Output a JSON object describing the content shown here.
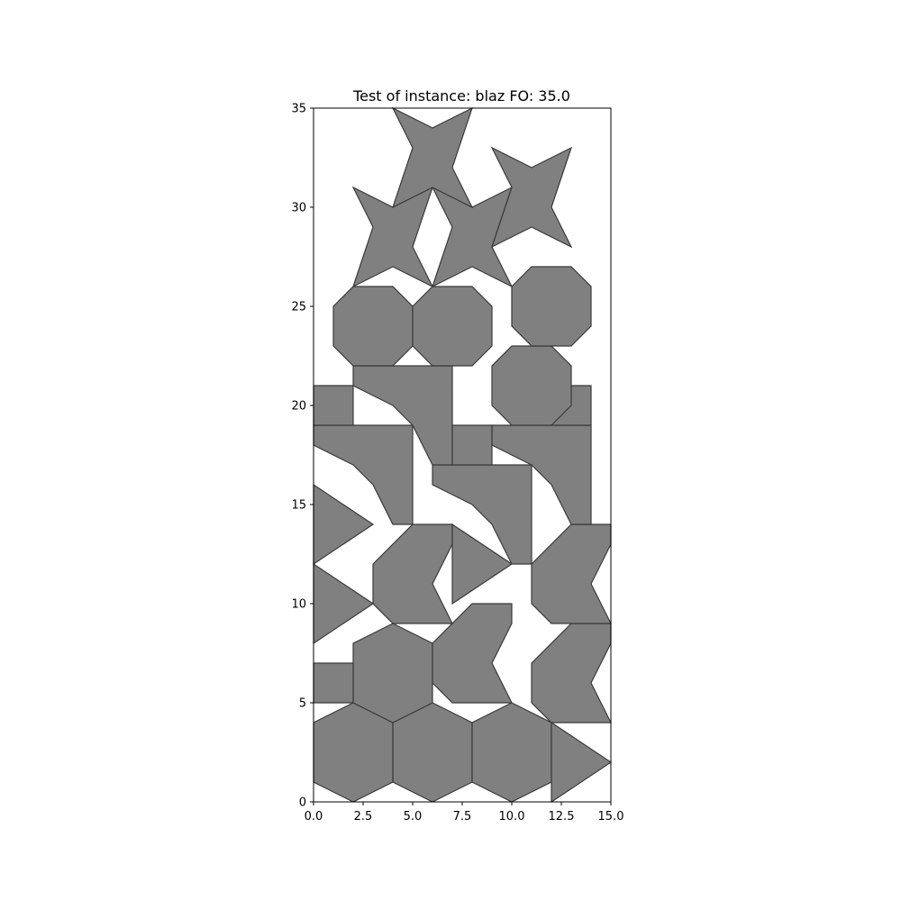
{
  "chart_data": {
    "type": "polygon-packing",
    "title": "Test of instance: blaz  FO: 35.0",
    "xlim": [
      0,
      15
    ],
    "ylim": [
      0,
      35
    ],
    "xticks": [
      0,
      2.5,
      5,
      7.5,
      10,
      12.5,
      15
    ],
    "xtick_labels": [
      "0.0",
      "2.5",
      "5.0",
      "7.5",
      "10.0",
      "12.5",
      "15.0"
    ],
    "yticks": [
      0,
      5,
      10,
      15,
      20,
      25,
      30,
      35
    ],
    "ytick_labels": [
      "0",
      "5",
      "10",
      "15",
      "20",
      "25",
      "30",
      "35"
    ],
    "grid": false,
    "colors": {
      "fill": "#808080",
      "edge": "#3a3a3a",
      "axes": "#000000"
    },
    "polygons": [
      {
        "shape": "hexagon",
        "points": [
          [
            0,
            1
          ],
          [
            0,
            4
          ],
          [
            2,
            5
          ],
          [
            4,
            4
          ],
          [
            4,
            1
          ],
          [
            2,
            0
          ]
        ]
      },
      {
        "shape": "hexagon",
        "points": [
          [
            4,
            1
          ],
          [
            4,
            4
          ],
          [
            6,
            5
          ],
          [
            8,
            4
          ],
          [
            8,
            1
          ],
          [
            6,
            0
          ]
        ]
      },
      {
        "shape": "hexagon",
        "points": [
          [
            8,
            1
          ],
          [
            8,
            4
          ],
          [
            10,
            5
          ],
          [
            12,
            4
          ],
          [
            12,
            1
          ],
          [
            10,
            0
          ]
        ]
      },
      {
        "shape": "triangle",
        "points": [
          [
            12,
            0
          ],
          [
            12,
            4
          ],
          [
            15,
            2
          ]
        ]
      },
      {
        "shape": "hexagon",
        "points": [
          [
            2,
            5
          ],
          [
            2,
            8
          ],
          [
            4,
            9
          ],
          [
            6,
            8
          ],
          [
            6,
            5
          ],
          [
            4,
            4
          ]
        ]
      },
      {
        "shape": "square",
        "points": [
          [
            0,
            5
          ],
          [
            2,
            5
          ],
          [
            2,
            7
          ],
          [
            0,
            7
          ]
        ]
      },
      {
        "shape": "chevron",
        "points": [
          [
            6,
            8
          ],
          [
            6,
            6
          ],
          [
            7,
            5
          ],
          [
            10,
            5
          ],
          [
            9,
            7
          ],
          [
            10,
            9
          ],
          [
            10,
            10
          ],
          [
            8,
            10
          ]
        ]
      },
      {
        "shape": "chevron",
        "points": [
          [
            11,
            7
          ],
          [
            11,
            5
          ],
          [
            12,
            4
          ],
          [
            15,
            4
          ],
          [
            14,
            6
          ],
          [
            15,
            8
          ],
          [
            15,
            9
          ],
          [
            13,
            9
          ]
        ]
      },
      {
        "shape": "triangle",
        "points": [
          [
            0,
            8
          ],
          [
            0,
            12
          ],
          [
            3,
            10
          ]
        ]
      },
      {
        "shape": "triangle",
        "points": [
          [
            0,
            12
          ],
          [
            0,
            16
          ],
          [
            3,
            14
          ]
        ]
      },
      {
        "shape": "chevron",
        "points": [
          [
            3,
            12
          ],
          [
            3,
            10
          ],
          [
            4,
            9
          ],
          [
            7,
            9
          ],
          [
            6,
            11
          ],
          [
            7,
            13
          ],
          [
            7,
            14
          ],
          [
            5,
            14
          ]
        ]
      },
      {
        "shape": "triangle",
        "points": [
          [
            7,
            10
          ],
          [
            7,
            14
          ],
          [
            10,
            12
          ]
        ]
      },
      {
        "shape": "chevron",
        "points": [
          [
            11,
            12
          ],
          [
            11,
            10
          ],
          [
            12,
            9
          ],
          [
            15,
            9
          ],
          [
            14,
            11
          ],
          [
            15,
            13
          ],
          [
            15,
            14
          ],
          [
            13,
            14
          ]
        ]
      },
      {
        "shape": "trapezoid",
        "points": [
          [
            0,
            19
          ],
          [
            5,
            19
          ],
          [
            5,
            14
          ],
          [
            4,
            14
          ],
          [
            3,
            16
          ],
          [
            2,
            17
          ],
          [
            0,
            18
          ]
        ]
      },
      {
        "shape": "trapezoid",
        "points": [
          [
            6,
            17
          ],
          [
            11,
            17
          ],
          [
            11,
            12
          ],
          [
            10,
            12
          ],
          [
            9,
            14
          ],
          [
            8,
            15
          ],
          [
            6,
            16
          ]
        ]
      },
      {
        "shape": "trapezoid",
        "points": [
          [
            9,
            19
          ],
          [
            14,
            19
          ],
          [
            14,
            14
          ],
          [
            13,
            14
          ],
          [
            12,
            16
          ],
          [
            11,
            17
          ],
          [
            9,
            18
          ]
        ]
      },
      {
        "shape": "trapezoid",
        "points": [
          [
            2,
            22
          ],
          [
            7,
            22
          ],
          [
            7,
            17
          ],
          [
            6,
            17
          ],
          [
            5,
            19
          ],
          [
            4,
            20
          ],
          [
            2,
            21
          ]
        ]
      },
      {
        "shape": "square",
        "points": [
          [
            0,
            19
          ],
          [
            2,
            19
          ],
          [
            2,
            21
          ],
          [
            0,
            21
          ]
        ]
      },
      {
        "shape": "square",
        "points": [
          [
            7,
            17
          ],
          [
            9,
            17
          ],
          [
            9,
            19
          ],
          [
            7,
            19
          ]
        ]
      },
      {
        "shape": "square",
        "points": [
          [
            12,
            19
          ],
          [
            14,
            19
          ],
          [
            14,
            21
          ],
          [
            12,
            21
          ]
        ]
      },
      {
        "shape": "octagon",
        "points": [
          [
            9,
            20
          ],
          [
            10,
            19
          ],
          [
            12,
            19
          ],
          [
            13,
            20
          ],
          [
            13,
            22
          ],
          [
            12,
            23
          ],
          [
            10,
            23
          ],
          [
            9,
            22
          ]
        ]
      },
      {
        "shape": "octagon",
        "points": [
          [
            1,
            23
          ],
          [
            2,
            22
          ],
          [
            4,
            22
          ],
          [
            5,
            23
          ],
          [
            5,
            25
          ],
          [
            4,
            26
          ],
          [
            2,
            26
          ],
          [
            1,
            25
          ]
        ]
      },
      {
        "shape": "octagon",
        "points": [
          [
            5,
            23
          ],
          [
            6,
            22
          ],
          [
            8,
            22
          ],
          [
            9,
            23
          ],
          [
            9,
            25
          ],
          [
            8,
            26
          ],
          [
            6,
            26
          ],
          [
            5,
            25
          ]
        ]
      },
      {
        "shape": "octagon",
        "points": [
          [
            10,
            24
          ],
          [
            11,
            23
          ],
          [
            13,
            23
          ],
          [
            14,
            24
          ],
          [
            14,
            26
          ],
          [
            13,
            27
          ],
          [
            11,
            27
          ],
          [
            10,
            26
          ]
        ]
      },
      {
        "shape": "star",
        "points": [
          [
            2,
            26
          ],
          [
            3,
            29
          ],
          [
            2,
            31
          ],
          [
            4,
            30
          ],
          [
            6,
            31
          ],
          [
            5,
            28
          ],
          [
            6,
            26
          ],
          [
            4,
            27
          ]
        ]
      },
      {
        "shape": "star",
        "points": [
          [
            6,
            26
          ],
          [
            7,
            29
          ],
          [
            6,
            31
          ],
          [
            8,
            30
          ],
          [
            10,
            31
          ],
          [
            9,
            28
          ],
          [
            10,
            26
          ],
          [
            8,
            27
          ]
        ]
      },
      {
        "shape": "star",
        "points": [
          [
            4,
            30
          ],
          [
            5,
            33
          ],
          [
            4,
            35
          ],
          [
            6,
            34
          ],
          [
            8,
            35
          ],
          [
            7,
            32
          ],
          [
            8,
            30
          ],
          [
            6,
            31
          ]
        ]
      },
      {
        "shape": "star",
        "points": [
          [
            9,
            28
          ],
          [
            10,
            31
          ],
          [
            9,
            33
          ],
          [
            11,
            32
          ],
          [
            13,
            33
          ],
          [
            12,
            30
          ],
          [
            13,
            28
          ],
          [
            11,
            29
          ]
        ]
      }
    ]
  }
}
